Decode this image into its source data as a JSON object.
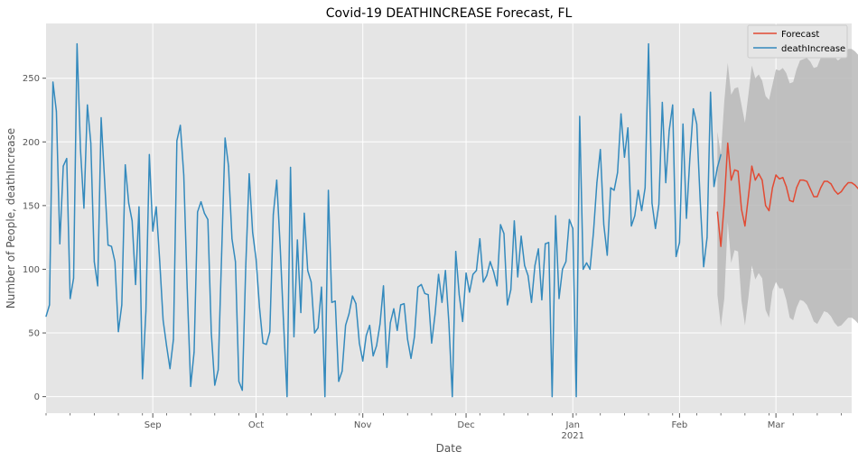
{
  "chart_data": {
    "type": "line",
    "title": "Covid-19 DEATHINCREASE Forecast, FL",
    "xlabel": "Date",
    "ylabel": "Number of People, deathIncrease",
    "x_range": [
      "2020-08-01",
      "2021-03-23"
    ],
    "ylim": [
      -13,
      293
    ],
    "yticks": [
      0,
      50,
      100,
      150,
      200,
      250
    ],
    "xticks": [
      {
        "date": "2020-09-01",
        "label": "Sep"
      },
      {
        "date": "2020-10-01",
        "label": "Oct"
      },
      {
        "date": "2020-11-01",
        "label": "Nov"
      },
      {
        "date": "2020-12-01",
        "label": "Dec"
      },
      {
        "date": "2021-01-01",
        "label": "Jan"
      },
      {
        "date": "2021-02-01",
        "label": "Feb"
      },
      {
        "date": "2021-03-01",
        "label": "Mar"
      }
    ],
    "year_label": {
      "date": "2021-01-01",
      "label": "2021"
    },
    "grid": true,
    "legend": "top-right",
    "series": [
      {
        "name": "Forecast",
        "color": "#E24A33",
        "start": "2021-02-12",
        "values": [
          145,
          118,
          152,
          199,
          170,
          178,
          177,
          147,
          134,
          157,
          181,
          170,
          175,
          170,
          150,
          146,
          164,
          174,
          171,
          172,
          165,
          154,
          153,
          164,
          170,
          170,
          169,
          163,
          157,
          157,
          164,
          169,
          169,
          167,
          162,
          159,
          161,
          165,
          168,
          168,
          166,
          163,
          161,
          162,
          165
        ],
        "ci_upper": [
          208,
          190,
          232,
          262,
          237,
          242,
          243,
          229,
          215,
          237,
          260,
          250,
          253,
          248,
          236,
          233,
          245,
          257,
          256,
          258,
          254,
          246,
          247,
          257,
          264,
          265,
          266,
          263,
          258,
          259,
          266,
          271,
          272,
          270,
          267,
          264,
          266,
          270,
          273,
          273,
          271,
          268,
          266,
          268,
          272
        ],
        "ci_lower": [
          80,
          55,
          77,
          137,
          105,
          115,
          114,
          75,
          56,
          78,
          103,
          92,
          97,
          93,
          68,
          62,
          83,
          90,
          85,
          85,
          76,
          62,
          60,
          70,
          76,
          75,
          72,
          66,
          59,
          57,
          62,
          67,
          66,
          63,
          58,
          55,
          56,
          59,
          62,
          62,
          60,
          57,
          55,
          55,
          57
        ]
      },
      {
        "name": "deathIncrease",
        "color": "#348ABD",
        "start": "2020-08-01",
        "values": [
          63,
          72,
          247,
          224,
          120,
          181,
          187,
          77,
          93,
          277,
          194,
          148,
          229,
          199,
          106,
          87,
          219,
          170,
          119,
          118,
          106,
          51,
          72,
          182,
          152,
          138,
          88,
          149,
          14,
          67,
          190,
          130,
          149,
          107,
          60,
          40,
          22,
          45,
          201,
          213,
          174,
          85,
          8,
          35,
          145,
          153,
          144,
          139,
          50,
          9,
          21,
          112,
          203,
          181,
          124,
          106,
          12,
          5,
          102,
          175,
          129,
          108,
          70,
          42,
          41,
          51,
          143,
          170,
          118,
          57,
          0,
          180,
          47,
          123,
          66,
          144,
          99,
          90,
          50,
          54,
          86,
          0,
          162,
          74,
          75,
          12,
          20,
          56,
          65,
          79,
          73,
          42,
          28,
          48,
          56,
          32,
          40,
          57,
          87,
          23,
          58,
          69,
          52,
          72,
          73,
          45,
          30,
          47,
          86,
          88,
          81,
          80,
          42,
          65,
          96,
          74,
          99,
          58,
          0,
          114,
          80,
          59,
          97,
          82,
          96,
          99,
          124,
          90,
          95,
          106,
          98,
          87,
          135,
          128,
          72,
          84,
          138,
          94,
          126,
          103,
          95,
          74,
          103,
          116,
          76,
          120,
          121,
          0,
          142,
          77,
          100,
          106,
          139,
          132,
          0,
          220,
          100,
          105,
          100,
          129,
          168,
          194,
          135,
          111,
          164,
          162,
          176,
          222,
          188,
          211,
          134,
          142,
          162,
          146,
          164,
          277,
          152,
          132,
          151,
          231,
          168,
          209,
          229,
          110,
          121,
          214,
          140,
          187,
          226,
          214,
          154,
          102,
          125,
          239,
          165,
          180,
          190
        ]
      }
    ]
  }
}
